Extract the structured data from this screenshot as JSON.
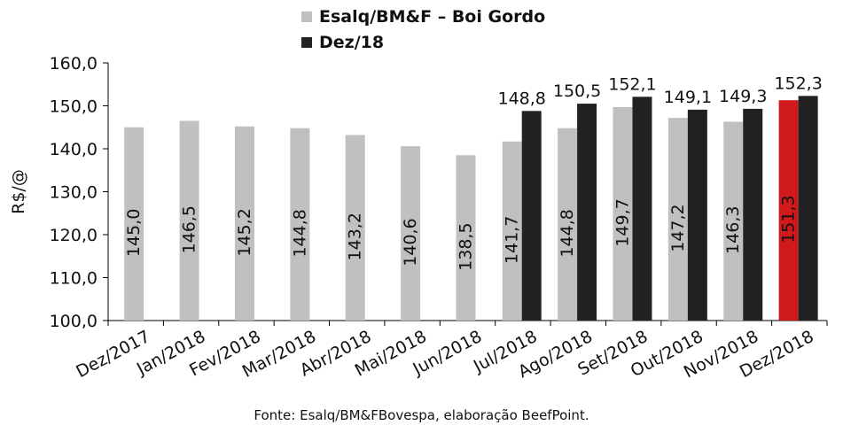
{
  "chart_data": {
    "type": "bar",
    "ylabel": "R$/@",
    "ylim": [
      100,
      160
    ],
    "yticks": [
      "100,0",
      "110,0",
      "120,0",
      "130,0",
      "140,0",
      "150,0",
      "160,0"
    ],
    "categories": [
      "Dez/2017",
      "Jan/2018",
      "Fev/2018",
      "Mar/2018",
      "Abr/2018",
      "Mai/2018",
      "Jun/2018",
      "Jul/2018",
      "Ago/2018",
      "Set/2018",
      "Out/2018",
      "Nov/2018",
      "Dez/2018"
    ],
    "series": [
      {
        "name": "Esalq/BM&F – Boi Gordo",
        "color": "#c0c0c0",
        "highlight_color": "#d0191b",
        "values": [
          145.0,
          146.5,
          145.2,
          144.8,
          143.2,
          140.6,
          138.5,
          141.7,
          144.8,
          149.7,
          147.2,
          146.3,
          151.3
        ],
        "labels": [
          "145,0",
          "146,5",
          "145,2",
          "144,8",
          "143,2",
          "140,6",
          "138,5",
          "141,7",
          "144,8",
          "149,7",
          "147,2",
          "146,3",
          "151,3"
        ]
      },
      {
        "name": "Dez/18",
        "color": "#222222",
        "values": [
          null,
          null,
          null,
          null,
          null,
          null,
          null,
          148.8,
          150.5,
          152.1,
          149.1,
          149.3,
          152.3
        ],
        "labels": [
          "",
          "",
          "",
          "",
          "",
          "",
          "",
          "148,8",
          "150,5",
          "152,1",
          "149,1",
          "149,3",
          "152,3"
        ]
      }
    ],
    "legend_position": "top-center",
    "grid": false
  },
  "source": "Fonte: Esalq/BM&FBovespa, elaboração BeefPoint."
}
